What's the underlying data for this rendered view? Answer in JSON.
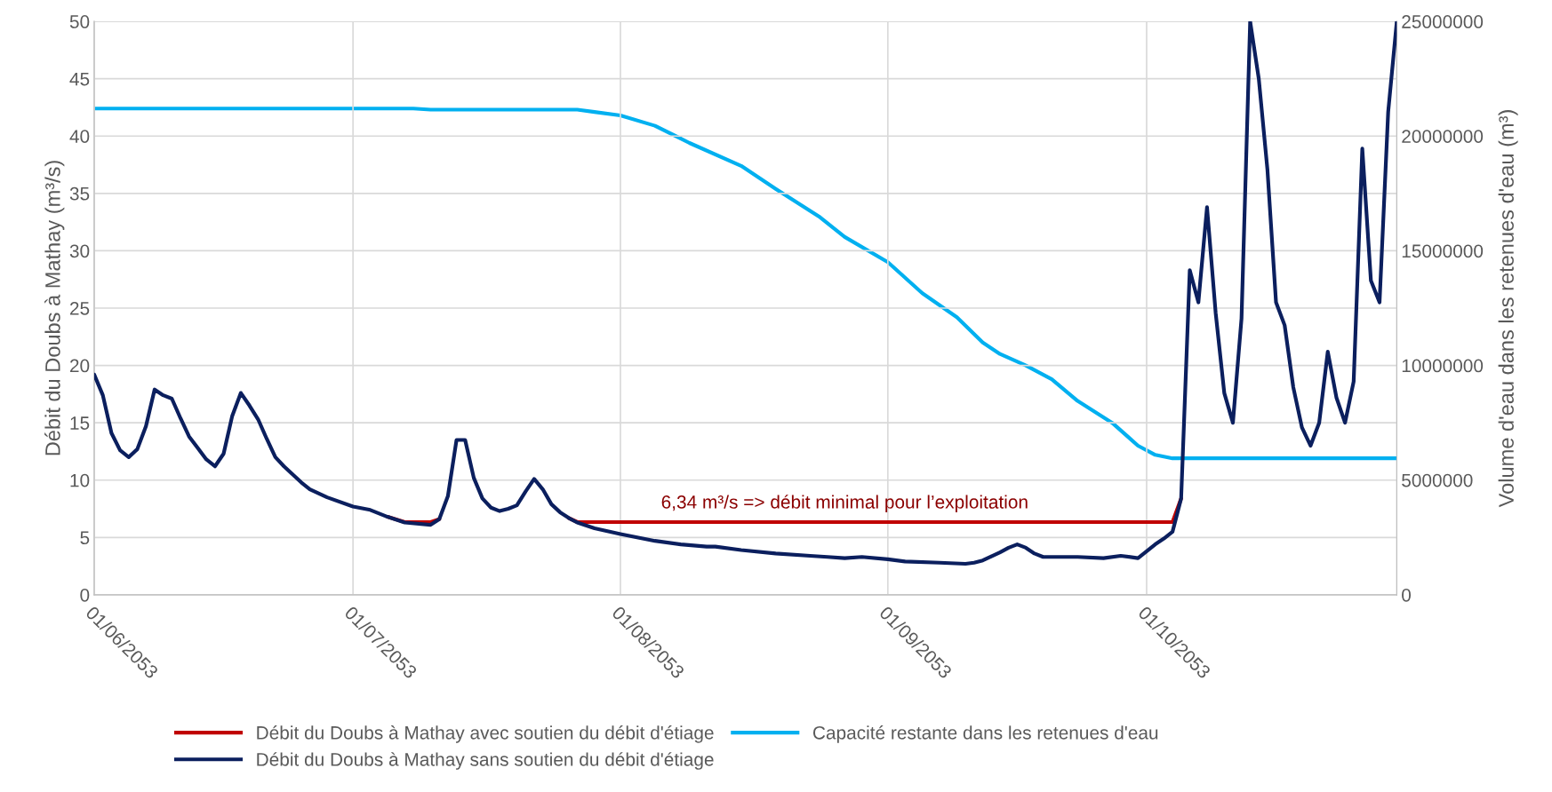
{
  "chart_data": {
    "type": "line",
    "ylabel": "Débit du Doubs à Mathay (m³/s)",
    "y2label": "Volume d'eau dans les retenues d'eau (m³)",
    "xlim": [
      "2053-06-01",
      "2053-10-30"
    ],
    "xticks": [
      {
        "value": "2053-06-01",
        "label": "01/06/2053"
      },
      {
        "value": "2053-07-01",
        "label": "01/07/2053"
      },
      {
        "value": "2053-08-01",
        "label": "01/08/2053"
      },
      {
        "value": "2053-09-01",
        "label": "01/09/2053"
      },
      {
        "value": "2053-10-01",
        "label": "01/10/2053"
      }
    ],
    "ylim": [
      0,
      50
    ],
    "yticks": [
      0,
      5,
      10,
      15,
      20,
      25,
      30,
      35,
      40,
      45,
      50
    ],
    "y2lim": [
      0,
      25000000
    ],
    "y2ticks": [
      0,
      5000000,
      10000000,
      15000000,
      20000000,
      25000000
    ],
    "grid": true,
    "legend": "bottom",
    "line_style": "solid",
    "marker": "none",
    "annotations": [
      {
        "text": "6,34 m³/s => débit minimal pour l’exploitation",
        "x": "2053-08-27",
        "y": 6.34
      }
    ],
    "series": [
      {
        "name": "Débit du Doubs à Mathay avec soutien du débit d'étiage",
        "color": "#c00000",
        "x": [
          "2053-07-05",
          "2053-07-07",
          "2053-07-10",
          "2053-07-11",
          "2053-07-12",
          "2053-07-26",
          "2053-07-27",
          "2053-10-04",
          "2053-10-05"
        ],
        "values": [
          6.8,
          6.34,
          6.34,
          6.6,
          null,
          6.7,
          6.34,
          6.34,
          8.4
        ]
      },
      {
        "name": "Débit du Doubs à Mathay sans soutien du débit d'étiage",
        "color": "#0b1f5e",
        "x": [
          "2053-06-01",
          "2053-06-02",
          "2053-06-03",
          "2053-06-04",
          "2053-06-05",
          "2053-06-06",
          "2053-06-07",
          "2053-06-08",
          "2053-06-09",
          "2053-06-10",
          "2053-06-11",
          "2053-06-12",
          "2053-06-13",
          "2053-06-14",
          "2053-06-15",
          "2053-06-16",
          "2053-06-17",
          "2053-06-18",
          "2053-06-19",
          "2053-06-20",
          "2053-06-21",
          "2053-06-22",
          "2053-06-23",
          "2053-06-24",
          "2053-06-25",
          "2053-06-26",
          "2053-06-28",
          "2053-07-01",
          "2053-07-03",
          "2053-07-05",
          "2053-07-07",
          "2053-07-10",
          "2053-07-11",
          "2053-07-12",
          "2053-07-13",
          "2053-07-14",
          "2053-07-15",
          "2053-07-16",
          "2053-07-17",
          "2053-07-18",
          "2053-07-19",
          "2053-07-20",
          "2053-07-21",
          "2053-07-22",
          "2053-07-23",
          "2053-07-24",
          "2053-07-25",
          "2053-07-26",
          "2053-07-27",
          "2053-07-29",
          "2053-08-01",
          "2053-08-05",
          "2053-08-08",
          "2053-08-11",
          "2053-08-12",
          "2053-08-15",
          "2053-08-19",
          "2053-08-23",
          "2053-08-25",
          "2053-08-27",
          "2053-08-29",
          "2053-09-01",
          "2053-09-03",
          "2053-09-07",
          "2053-09-10",
          "2053-09-11",
          "2053-09-12",
          "2053-09-14",
          "2053-09-15",
          "2053-09-16",
          "2053-09-17",
          "2053-09-18",
          "2053-09-19",
          "2053-09-20",
          "2053-09-23",
          "2053-09-26",
          "2053-09-28",
          "2053-09-30",
          "2053-10-02",
          "2053-10-03",
          "2053-10-04",
          "2053-10-05",
          "2053-10-06",
          "2053-10-07",
          "2053-10-08",
          "2053-10-09",
          "2053-10-10",
          "2053-10-11",
          "2053-10-12",
          "2053-10-13",
          "2053-10-14",
          "2053-10-15",
          "2053-10-16",
          "2053-10-17",
          "2053-10-18",
          "2053-10-19",
          "2053-10-20",
          "2053-10-21",
          "2053-10-22",
          "2053-10-23",
          "2053-10-24",
          "2053-10-25",
          "2053-10-26",
          "2053-10-27",
          "2053-10-28",
          "2053-10-29",
          "2053-10-30"
        ],
        "values": [
          19.2,
          17.4,
          14.1,
          12.6,
          12.0,
          12.7,
          14.7,
          17.9,
          17.4,
          17.1,
          15.4,
          13.8,
          12.8,
          11.8,
          11.2,
          12.3,
          15.6,
          17.6,
          16.5,
          15.3,
          13.6,
          12.0,
          11.2,
          10.5,
          9.8,
          9.2,
          8.5,
          7.7,
          7.4,
          6.8,
          6.3,
          6.1,
          6.6,
          8.6,
          13.5,
          13.5,
          10.2,
          8.4,
          7.6,
          7.3,
          7.5,
          7.8,
          9.0,
          10.1,
          9.2,
          7.9,
          7.2,
          6.7,
          6.3,
          5.8,
          5.3,
          4.7,
          4.4,
          4.2,
          4.2,
          3.9,
          3.6,
          3.4,
          3.3,
          3.2,
          3.3,
          3.1,
          2.9,
          2.8,
          2.7,
          2.8,
          3.0,
          3.7,
          4.1,
          4.4,
          4.1,
          3.6,
          3.3,
          3.3,
          3.3,
          3.2,
          3.4,
          3.2,
          4.4,
          4.9,
          5.5,
          8.4,
          28.3,
          25.5,
          33.8,
          24.6,
          17.6,
          15.0,
          24.1,
          50,
          45.0,
          37.1,
          25.5,
          23.5,
          18.1,
          14.6,
          13.0,
          15.0,
          21.2,
          17.2,
          15.0,
          18.6,
          38.9,
          27.4,
          25.5,
          42.1,
          50
        ]
      },
      {
        "name": "Capacité restante dans les retenues d'eau",
        "color": "#00b0f0",
        "axis": "y2",
        "x": [
          "2053-06-01",
          "2053-07-08",
          "2053-07-10",
          "2053-07-27",
          "2053-07-29",
          "2053-08-01",
          "2053-08-05",
          "2053-08-09",
          "2053-08-15",
          "2053-08-19",
          "2053-08-24",
          "2053-08-27",
          "2053-09-01",
          "2053-09-05",
          "2053-09-09",
          "2053-09-12",
          "2053-09-14",
          "2053-09-17",
          "2053-09-20",
          "2053-09-23",
          "2053-09-27",
          "2053-09-30",
          "2053-10-02",
          "2053-10-04",
          "2053-10-30"
        ],
        "values": [
          21200000,
          21200000,
          21150000,
          21150000,
          21050000,
          20900000,
          20450000,
          19700000,
          18700000,
          17700000,
          16500000,
          15600000,
          14500000,
          13150000,
          12100000,
          11000000,
          10500000,
          10000000,
          9400000,
          8450000,
          7500000,
          6500000,
          6100000,
          5950000,
          5950000
        ]
      }
    ]
  }
}
